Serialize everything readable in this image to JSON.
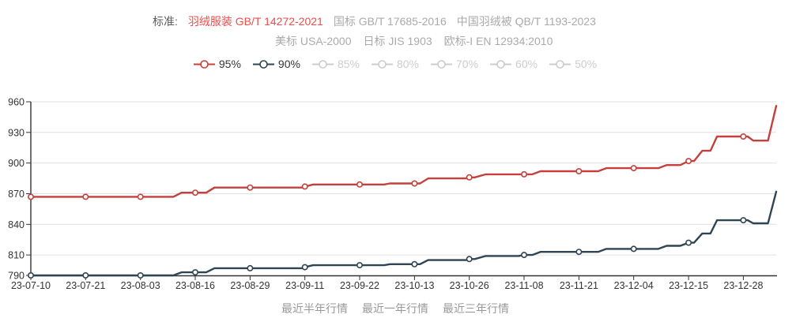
{
  "header": {
    "label": "标准:",
    "active_color": "#ef4b4b",
    "inactive_color": "#aaaaaa",
    "standards_row1": [
      {
        "label": "羽绒服装 GB/T 14272-2021",
        "active": true
      },
      {
        "label": "国标 GB/T 17685-2016",
        "active": false
      },
      {
        "label": "中国羽绒被 QB/T 1193-2023",
        "active": false
      }
    ],
    "standards_row2": [
      {
        "label": "美标 USA-2000",
        "active": false
      },
      {
        "label": "日标 JIS 1903",
        "active": false
      },
      {
        "label": "欧标-I EN 12934:2010",
        "active": false
      }
    ]
  },
  "legend": {
    "items": [
      {
        "label": "95%",
        "active": true,
        "color": "#c5403c"
      },
      {
        "label": "90%",
        "active": true,
        "color": "#2f4554"
      },
      {
        "label": "85%",
        "active": false,
        "color": "#cccccc"
      },
      {
        "label": "80%",
        "active": false,
        "color": "#cccccc"
      },
      {
        "label": "70%",
        "active": false,
        "color": "#cccccc"
      },
      {
        "label": "60%",
        "active": false,
        "color": "#cccccc"
      },
      {
        "label": "50%",
        "active": false,
        "color": "#cccccc"
      }
    ]
  },
  "footer": {
    "links": [
      "最近半年行情",
      "最近一年行情",
      "最近三年行情"
    ]
  },
  "chart_data": {
    "type": "line",
    "title": "",
    "xlabel": "",
    "ylabel": "",
    "legend_position": "top",
    "grid": true,
    "grid_color": "#e0e0e0",
    "axis_color": "#333333",
    "label_color": "#333333",
    "ylim": [
      790,
      960
    ],
    "y_ticks": [
      790,
      810,
      840,
      870,
      900,
      930,
      960
    ],
    "x_labels": [
      "23-07-10",
      "23-07-21",
      "23-08-03",
      "23-08-16",
      "23-08-29",
      "23-09-11",
      "23-09-22",
      "23-10-13",
      "23-10-26",
      "23-11-08",
      "23-11-21",
      "23-12-04",
      "23-12-15",
      "23-12-28"
    ],
    "x_unit_note": "point x-positions are in label-interval units: 0 = 23-07-10, 13 = 23-12-28, 13.6 = latest point at right edge",
    "series": [
      {
        "name": "95%",
        "color": "#c5403c",
        "values_at_labels": [
          867,
          867,
          867,
          871,
          876,
          877,
          879,
          880,
          886,
          889,
          892,
          895,
          902,
          926
        ],
        "latest_value": 956,
        "markers": [
          [
            0,
            867
          ],
          [
            1,
            867
          ],
          [
            2,
            867
          ],
          [
            3,
            871
          ],
          [
            4,
            876
          ],
          [
            5,
            877
          ],
          [
            6,
            879
          ],
          [
            7,
            880
          ],
          [
            8,
            886
          ],
          [
            9,
            889
          ],
          [
            10,
            892
          ],
          [
            11,
            895
          ],
          [
            12,
            902
          ],
          [
            13,
            926
          ]
        ],
        "points": [
          [
            0,
            867
          ],
          [
            2.6,
            867
          ],
          [
            2.75,
            871
          ],
          [
            3,
            871
          ],
          [
            3.2,
            871
          ],
          [
            3.35,
            876
          ],
          [
            4,
            876
          ],
          [
            4.95,
            876
          ],
          [
            5,
            877
          ],
          [
            5.15,
            879
          ],
          [
            6,
            879
          ],
          [
            6.45,
            879
          ],
          [
            6.55,
            880
          ],
          [
            7,
            880
          ],
          [
            7.1,
            880
          ],
          [
            7.25,
            885
          ],
          [
            7.95,
            885
          ],
          [
            8,
            886
          ],
          [
            8.1,
            886
          ],
          [
            8.3,
            889
          ],
          [
            9,
            889
          ],
          [
            9.15,
            889
          ],
          [
            9.3,
            892
          ],
          [
            10,
            892
          ],
          [
            10.35,
            892
          ],
          [
            10.5,
            895
          ],
          [
            11,
            895
          ],
          [
            11.45,
            895
          ],
          [
            11.6,
            898
          ],
          [
            11.85,
            898
          ],
          [
            12,
            902
          ],
          [
            12.1,
            902
          ],
          [
            12.25,
            912
          ],
          [
            12.4,
            912
          ],
          [
            12.52,
            926
          ],
          [
            13,
            926
          ],
          [
            13.08,
            926
          ],
          [
            13.18,
            922
          ],
          [
            13.45,
            922
          ],
          [
            13.6,
            956
          ]
        ]
      },
      {
        "name": "90%",
        "color": "#2f4554",
        "values_at_labels": [
          790,
          790,
          790,
          793,
          797,
          798,
          800,
          801,
          806,
          810,
          813,
          816,
          822,
          844
        ],
        "latest_value": 872,
        "markers": [
          [
            0,
            790
          ],
          [
            1,
            790
          ],
          [
            2,
            790
          ],
          [
            3,
            793
          ],
          [
            4,
            797
          ],
          [
            5,
            798
          ],
          [
            6,
            800
          ],
          [
            7,
            801
          ],
          [
            8,
            806
          ],
          [
            9,
            810
          ],
          [
            10,
            813
          ],
          [
            11,
            816
          ],
          [
            12,
            822
          ],
          [
            13,
            844
          ]
        ],
        "points": [
          [
            0,
            790
          ],
          [
            2.6,
            790
          ],
          [
            2.75,
            793
          ],
          [
            3,
            793
          ],
          [
            3.2,
            793
          ],
          [
            3.35,
            797
          ],
          [
            4,
            797
          ],
          [
            4.95,
            797
          ],
          [
            5,
            798
          ],
          [
            5.15,
            800
          ],
          [
            6,
            800
          ],
          [
            6.45,
            800
          ],
          [
            6.55,
            801
          ],
          [
            7,
            801
          ],
          [
            7.1,
            801
          ],
          [
            7.25,
            805
          ],
          [
            7.95,
            805
          ],
          [
            8,
            806
          ],
          [
            8.1,
            806
          ],
          [
            8.3,
            809
          ],
          [
            8.9,
            809
          ],
          [
            9,
            810
          ],
          [
            9.15,
            810
          ],
          [
            9.3,
            813
          ],
          [
            10,
            813
          ],
          [
            10.35,
            813
          ],
          [
            10.5,
            816
          ],
          [
            11,
            816
          ],
          [
            11.45,
            816
          ],
          [
            11.6,
            819
          ],
          [
            11.85,
            819
          ],
          [
            12,
            822
          ],
          [
            12.1,
            822
          ],
          [
            12.25,
            831
          ],
          [
            12.4,
            831
          ],
          [
            12.52,
            844
          ],
          [
            13,
            844
          ],
          [
            13.08,
            844
          ],
          [
            13.18,
            841
          ],
          [
            13.45,
            841
          ],
          [
            13.6,
            872
          ]
        ]
      }
    ]
  }
}
